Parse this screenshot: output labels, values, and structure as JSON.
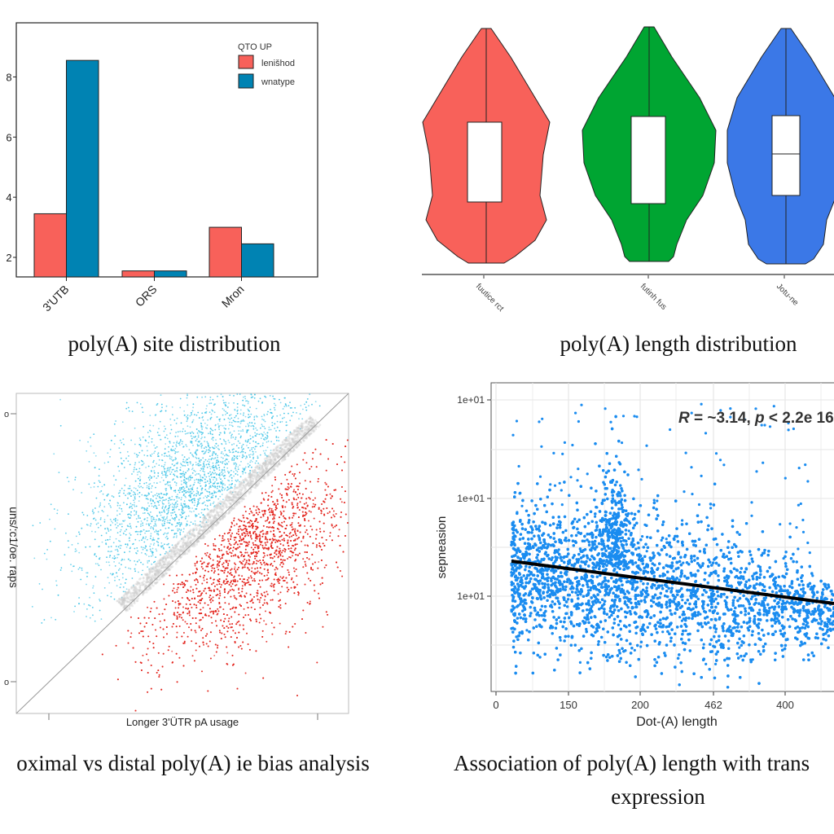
{
  "chart_data": [
    {
      "type": "bar",
      "caption": "poly(A) site distribution",
      "categories": [
        "3'UTB",
        "ORS",
        "Mron"
      ],
      "series": [
        {
          "name": "lenišhod",
          "color": "#f8615a",
          "values": [
            3.45,
            1.55,
            3.0
          ]
        },
        {
          "name": "wnatype",
          "color": "#0083b3",
          "values": [
            8.55,
            1.55,
            2.45
          ]
        }
      ],
      "legend_title": "QTO UP",
      "legend_position": "top-right",
      "yticks": [
        "2",
        "4",
        "6",
        "8"
      ],
      "ylim": [
        1.35,
        9.8
      ],
      "grid": false
    },
    {
      "type": "violin",
      "caption": "poly(A) length distribution",
      "categories": [
        "fuutice rct",
        "futinh fus",
        "Jotu-ne"
      ],
      "colors": [
        "#f8615a",
        "#00a532",
        "#3b78e7"
      ],
      "grid": false
    },
    {
      "type": "scatter",
      "caption": "oximal vs distal poly(A) ie bias analysis",
      "xlabel": "Longer 3'ÜTR pA usage",
      "ylabel": "uns/:c1/oe. raps",
      "yticks": [
        "o",
        "o"
      ],
      "groups": [
        {
          "position": "above diagonal",
          "color": "#3ec3e6"
        },
        {
          "position": "near diagonal",
          "color": "#c8c8c8"
        },
        {
          "position": "below diagonal",
          "color": "#e3261f"
        }
      ],
      "diagonal_line": true,
      "grid": false
    },
    {
      "type": "scatter",
      "caption_line1": "Association of poly(A) length with trans",
      "caption_line2": "expression",
      "xlabel": "Dot-(A) length",
      "ylabel": "sepneasion",
      "xticks": [
        "0",
        "150",
        "200",
        "462",
        "400"
      ],
      "yticks": [
        "1e+01",
        "1e+01",
        "1e+01"
      ],
      "annotation": {
        "r_symbol": "R",
        "r_text": " = ~3.14, ",
        "p_symbol": "p",
        "p_text": " < 2.2e 16"
      },
      "point_color": "#1a8cf0",
      "trend_line": {
        "color": "#000000",
        "slope": "negative"
      },
      "grid": true
    }
  ]
}
